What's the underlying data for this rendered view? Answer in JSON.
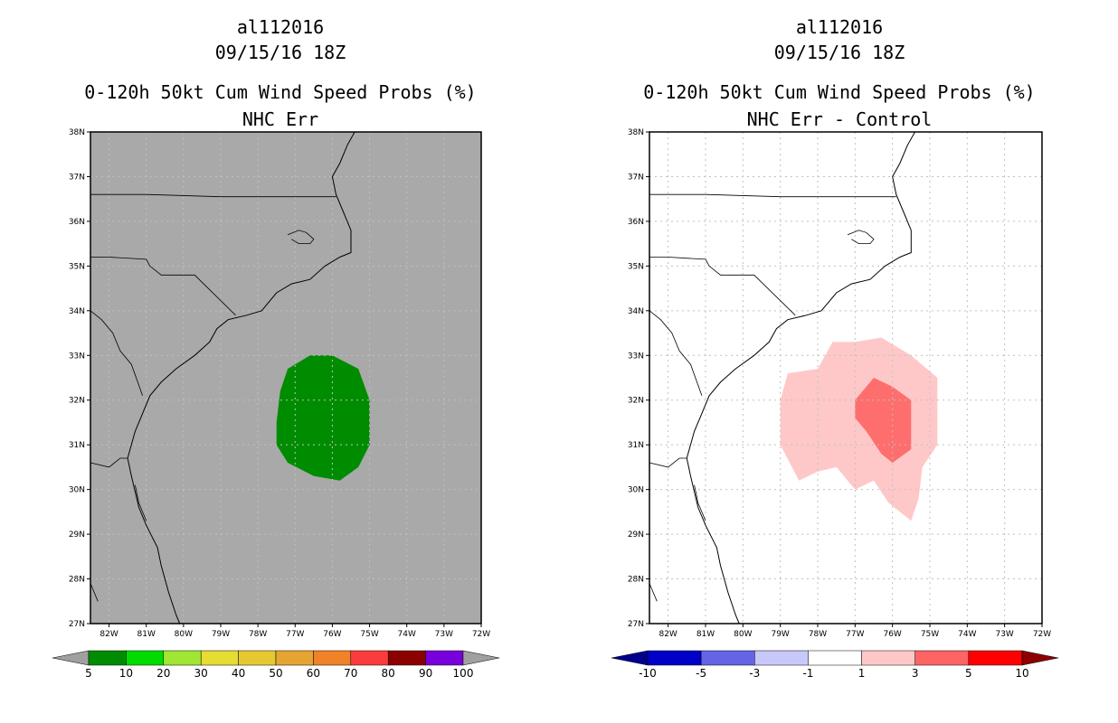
{
  "panels": [
    {
      "id": "left",
      "storm_id": "al112016",
      "datetime": "09/15/16 18Z",
      "product": "0-120h 50kt Cum Wind Speed Probs (%)",
      "subtitle": "NHC Err",
      "background_color": "#a9a9a9",
      "colorbar": {
        "colors": [
          "#008c00",
          "#00dc00",
          "#a0e632",
          "#e6dc32",
          "#e6c832",
          "#e6a532",
          "#f08228",
          "#fa3c3c",
          "#8c0000",
          "#7800dc"
        ],
        "extend_color": "#a0a0a0",
        "labels": [
          "5",
          "10",
          "20",
          "30",
          "40",
          "50",
          "60",
          "70",
          "80",
          "90",
          "100"
        ]
      },
      "shading": [
        {
          "level": "5-10",
          "color": "#008c00",
          "lonlat": [
            [
              -76.0,
              33.0
            ],
            [
              -75.3,
              32.7
            ],
            [
              -75.0,
              32.0
            ],
            [
              -75.0,
              31.0
            ],
            [
              -75.3,
              30.5
            ],
            [
              -75.8,
              30.2
            ],
            [
              -76.5,
              30.3
            ],
            [
              -77.2,
              30.6
            ],
            [
              -77.5,
              31.0
            ],
            [
              -77.5,
              31.5
            ],
            [
              -77.4,
              32.2
            ],
            [
              -77.2,
              32.7
            ],
            [
              -76.6,
              33.0
            ]
          ]
        }
      ]
    },
    {
      "id": "right",
      "storm_id": "al112016",
      "datetime": "09/15/16 18Z",
      "product": "0-120h 50kt Cum Wind Speed Probs (%)",
      "subtitle": "NHC Err - Control",
      "background_color": "#ffffff",
      "colorbar": {
        "colors": [
          "#0000c8",
          "#6464e6",
          "#c8c8fa",
          "#ffffff",
          "#ffc8c8",
          "#ff6464",
          "#ff0000"
        ],
        "extend_left": "#00008c",
        "extend_right": "#8c0000",
        "labels": [
          "-10",
          "-5",
          "-3",
          "-1",
          "1",
          "3",
          "5",
          "10"
        ]
      },
      "shading": [
        {
          "level": "1-3",
          "color": "#ffc8c8",
          "lonlat": [
            [
              -76.3,
              33.4
            ],
            [
              -75.5,
              33.0
            ],
            [
              -74.8,
              32.5
            ],
            [
              -74.8,
              31.5
            ],
            [
              -74.8,
              31.0
            ],
            [
              -75.2,
              30.5
            ],
            [
              -75.3,
              29.8
            ],
            [
              -75.5,
              29.3
            ],
            [
              -76.1,
              29.7
            ],
            [
              -76.5,
              30.2
            ],
            [
              -77.0,
              30.0
            ],
            [
              -77.5,
              30.5
            ],
            [
              -78.0,
              30.4
            ],
            [
              -78.5,
              30.2
            ],
            [
              -79.0,
              31.0
            ],
            [
              -79.0,
              32.0
            ],
            [
              -78.8,
              32.6
            ],
            [
              -78.0,
              32.7
            ],
            [
              -77.6,
              33.3
            ],
            [
              -77.0,
              33.3
            ]
          ]
        },
        {
          "level": "3-5",
          "color": "#ff6e6e",
          "lonlat": [
            [
              -76.5,
              32.5
            ],
            [
              -76.0,
              32.3
            ],
            [
              -75.5,
              32.0
            ],
            [
              -75.5,
              31.5
            ],
            [
              -75.5,
              30.9
            ],
            [
              -76.0,
              30.6
            ],
            [
              -76.3,
              30.8
            ],
            [
              -76.7,
              31.3
            ],
            [
              -77.0,
              31.6
            ],
            [
              -77.0,
              32.0
            ]
          ]
        }
      ]
    }
  ],
  "axes": {
    "lon_min": -82.5,
    "lon_max": -72,
    "lat_min": 27,
    "lat_max": 38,
    "lat_ticks": [
      "27N",
      "28N",
      "29N",
      "30N",
      "31N",
      "32N",
      "33N",
      "34N",
      "35N",
      "36N",
      "37N",
      "38N"
    ],
    "lon_ticks": [
      "82W",
      "81W",
      "80W",
      "79W",
      "78W",
      "77W",
      "76W",
      "75W",
      "74W",
      "73W",
      "72W"
    ]
  },
  "coastline": [
    [
      -75.4,
      38.0
    ],
    [
      -75.6,
      37.7
    ],
    [
      -75.8,
      37.3
    ],
    [
      -76.0,
      37.0
    ],
    [
      -75.9,
      36.6
    ],
    [
      -75.7,
      36.2
    ],
    [
      -75.5,
      35.8
    ],
    [
      -75.5,
      35.3
    ],
    [
      -75.8,
      35.2
    ],
    [
      -76.2,
      35.0
    ],
    [
      -76.6,
      34.7
    ],
    [
      -77.1,
      34.6
    ],
    [
      -77.5,
      34.4
    ],
    [
      -77.9,
      34.0
    ],
    [
      -78.3,
      33.9
    ],
    [
      -78.8,
      33.8
    ],
    [
      -79.1,
      33.6
    ],
    [
      -79.3,
      33.3
    ],
    [
      -79.7,
      33.0
    ],
    [
      -80.2,
      32.7
    ],
    [
      -80.6,
      32.4
    ],
    [
      -80.9,
      32.1
    ],
    [
      -81.1,
      31.7
    ],
    [
      -81.3,
      31.3
    ],
    [
      -81.5,
      30.7
    ],
    [
      -81.4,
      30.3
    ],
    [
      -81.2,
      29.6
    ],
    [
      -81.0,
      29.2
    ],
    [
      -80.7,
      28.7
    ],
    [
      -80.6,
      28.3
    ],
    [
      -80.4,
      27.7
    ],
    [
      -80.2,
      27.2
    ],
    [
      -80.1,
      27.0
    ]
  ],
  "borders": [
    [
      [
        -82.5,
        36.6
      ],
      [
        -81.0,
        36.6
      ],
      [
        -79.0,
        36.55
      ],
      [
        -77.0,
        36.55
      ],
      [
        -75.9,
        36.55
      ]
    ],
    [
      [
        -82.5,
        35.2
      ],
      [
        -82.0,
        35.2
      ],
      [
        -81.0,
        35.15
      ],
      [
        -80.9,
        35.0
      ],
      [
        -80.6,
        34.8
      ],
      [
        -79.7,
        34.8
      ],
      [
        -78.6,
        33.9
      ]
    ],
    [
      [
        -82.5,
        34.0
      ],
      [
        -82.2,
        33.8
      ],
      [
        -81.9,
        33.5
      ],
      [
        -81.7,
        33.1
      ],
      [
        -81.4,
        32.8
      ],
      [
        -81.1,
        32.1
      ]
    ],
    [
      [
        -82.5,
        30.6
      ],
      [
        -82.0,
        30.5
      ],
      [
        -81.7,
        30.7
      ],
      [
        -81.5,
        30.7
      ]
    ]
  ],
  "lakes": [
    [
      [
        -77.2,
        35.7
      ],
      [
        -76.9,
        35.8
      ],
      [
        -76.7,
        35.75
      ],
      [
        -76.5,
        35.6
      ],
      [
        -76.6,
        35.5
      ],
      [
        -76.9,
        35.5
      ],
      [
        -77.1,
        35.6
      ]
    ],
    [
      [
        -81.3,
        30.1
      ],
      [
        -81.2,
        29.7
      ],
      [
        -81.1,
        29.5
      ],
      [
        -81.0,
        29.3
      ]
    ],
    [
      [
        -82.3,
        27.5
      ],
      [
        -82.4,
        27.7
      ],
      [
        -82.5,
        27.9
      ]
    ]
  ]
}
